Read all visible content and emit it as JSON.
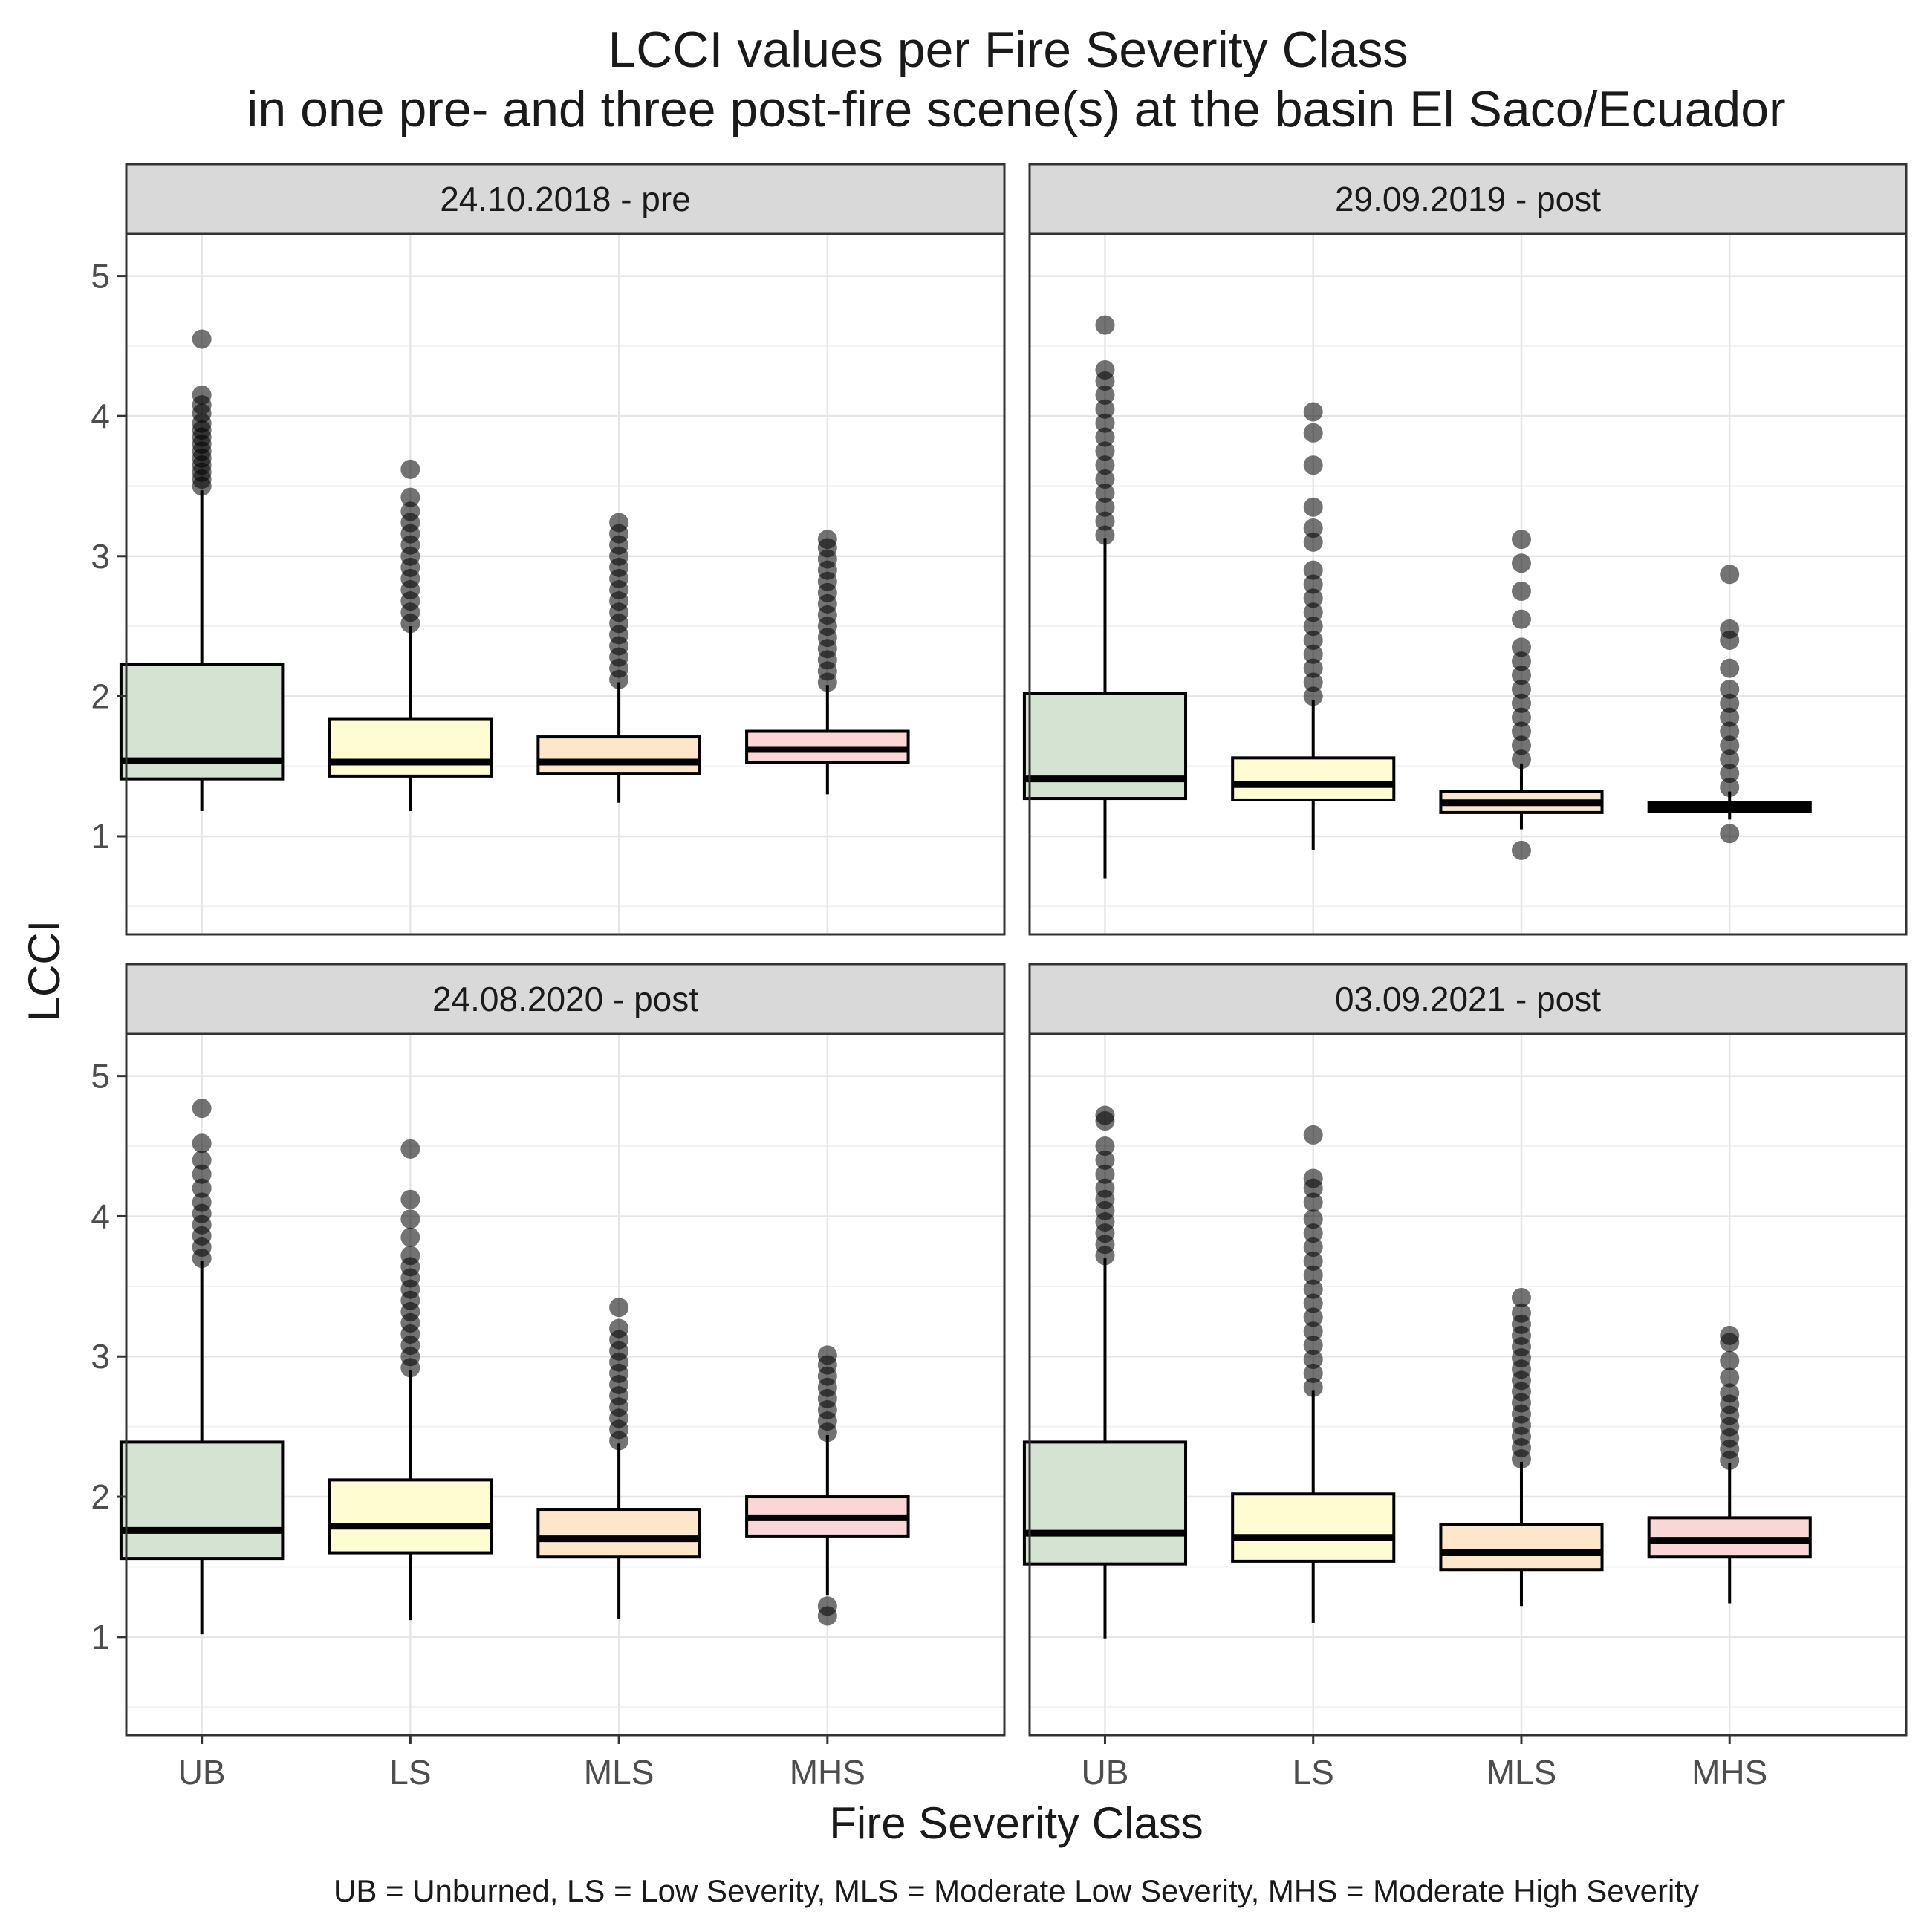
{
  "chart_data": {
    "type": "boxplot",
    "title": "LCCI values per Fire Severity Class",
    "subtitle": "in one pre- and three post-fire scene(s) at the basin El Saco/Ecuador",
    "xlabel": "Fire Severity Class",
    "ylabel": "LCCI",
    "caption": "UB = Unburned, LS = Low Severity, MLS = Moderate Low Severity, MHS = Moderate High Severity",
    "categories": [
      "UB",
      "LS",
      "MLS",
      "MHS"
    ],
    "ylim": [
      0.3,
      5.3
    ],
    "yticks": [
      1,
      2,
      3,
      4,
      5
    ],
    "colors": {
      "UB": "#d5e3d2",
      "LS": "#fefdd2",
      "MLS": "#fde6c9",
      "MHS": "#fbd6d6"
    },
    "panels": [
      {
        "label": "24.10.2018 - pre",
        "boxes": [
          {
            "category": "UB",
            "min": 1.18,
            "q1": 1.41,
            "median": 1.54,
            "q3": 2.23,
            "max": 3.47,
            "outliers": [
              3.5,
              3.55,
              3.6,
              3.65,
              3.7,
              3.75,
              3.8,
              3.85,
              3.9,
              3.95,
              4.02,
              4.08,
              4.15,
              4.55
            ]
          },
          {
            "category": "LS",
            "min": 1.18,
            "q1": 1.43,
            "median": 1.53,
            "q3": 1.84,
            "max": 2.5,
            "outliers": [
              2.52,
              2.6,
              2.68,
              2.76,
              2.84,
              2.92,
              3.0,
              3.08,
              3.16,
              3.24,
              3.32,
              3.42,
              3.62
            ]
          },
          {
            "category": "MLS",
            "min": 1.24,
            "q1": 1.45,
            "median": 1.53,
            "q3": 1.71,
            "max": 2.1,
            "outliers": [
              2.12,
              2.2,
              2.28,
              2.36,
              2.44,
              2.52,
              2.6,
              2.68,
              2.76,
              2.84,
              2.92,
              3.0,
              3.08,
              3.16,
              3.24
            ]
          },
          {
            "category": "MHS",
            "min": 1.3,
            "q1": 1.53,
            "median": 1.62,
            "q3": 1.75,
            "max": 2.08,
            "outliers": [
              2.1,
              2.18,
              2.26,
              2.34,
              2.42,
              2.5,
              2.58,
              2.66,
              2.74,
              2.82,
              2.9,
              2.98,
              3.06,
              3.12
            ]
          }
        ]
      },
      {
        "label": "29.09.2019 - post",
        "boxes": [
          {
            "category": "UB",
            "min": 0.7,
            "q1": 1.27,
            "median": 1.41,
            "q3": 2.02,
            "max": 3.13,
            "outliers": [
              3.15,
              3.25,
              3.35,
              3.45,
              3.55,
              3.65,
              3.75,
              3.85,
              3.95,
              4.05,
              4.15,
              4.25,
              4.33,
              4.65
            ]
          },
          {
            "category": "LS",
            "min": 0.9,
            "q1": 1.26,
            "median": 1.37,
            "q3": 1.56,
            "max": 1.97,
            "outliers": [
              2.0,
              2.1,
              2.2,
              2.3,
              2.4,
              2.5,
              2.6,
              2.7,
              2.8,
              2.9,
              3.1,
              3.2,
              3.35,
              3.65,
              3.88,
              4.03
            ]
          },
          {
            "category": "MLS",
            "min": 1.05,
            "q1": 1.17,
            "median": 1.24,
            "q3": 1.32,
            "max": 1.52,
            "outliers": [
              0.9,
              1.55,
              1.65,
              1.75,
              1.85,
              1.95,
              2.05,
              2.15,
              2.25,
              2.35,
              2.55,
              2.75,
              2.95,
              3.12
            ]
          },
          {
            "category": "MHS",
            "min": 1.12,
            "q1": 1.18,
            "median": 1.21,
            "q3": 1.24,
            "max": 1.32,
            "outliers": [
              1.02,
              1.35,
              1.45,
              1.55,
              1.65,
              1.75,
              1.85,
              1.95,
              2.05,
              2.2,
              2.4,
              2.48,
              2.87
            ]
          }
        ]
      },
      {
        "label": "24.08.2020 - post",
        "boxes": [
          {
            "category": "UB",
            "min": 1.02,
            "q1": 1.56,
            "median": 1.76,
            "q3": 2.39,
            "max": 3.68,
            "outliers": [
              3.7,
              3.78,
              3.86,
              3.94,
              4.02,
              4.1,
              4.2,
              4.3,
              4.4,
              4.52,
              4.77
            ]
          },
          {
            "category": "LS",
            "min": 1.12,
            "q1": 1.6,
            "median": 1.79,
            "q3": 2.12,
            "max": 2.9,
            "outliers": [
              2.92,
              3.0,
              3.08,
              3.16,
              3.24,
              3.32,
              3.4,
              3.48,
              3.56,
              3.64,
              3.72,
              3.85,
              3.98,
              4.12,
              4.48
            ]
          },
          {
            "category": "MLS",
            "min": 1.13,
            "q1": 1.57,
            "median": 1.7,
            "q3": 1.91,
            "max": 2.38,
            "outliers": [
              2.4,
              2.48,
              2.56,
              2.64,
              2.72,
              2.8,
              2.88,
              2.96,
              3.04,
              3.12,
              3.2,
              3.35
            ]
          },
          {
            "category": "MHS",
            "min": 1.3,
            "q1": 1.72,
            "median": 1.85,
            "q3": 2.0,
            "max": 2.44,
            "outliers": [
              1.15,
              1.22,
              2.46,
              2.54,
              2.62,
              2.7,
              2.78,
              2.86,
              2.94,
              3.01
            ]
          }
        ]
      },
      {
        "label": "03.09.2021 - post",
        "boxes": [
          {
            "category": "UB",
            "min": 0.99,
            "q1": 1.52,
            "median": 1.74,
            "q3": 2.39,
            "max": 3.7,
            "outliers": [
              3.72,
              3.8,
              3.88,
              3.96,
              4.04,
              4.12,
              4.2,
              4.3,
              4.4,
              4.5,
              4.68,
              4.72
            ]
          },
          {
            "category": "LS",
            "min": 1.1,
            "q1": 1.54,
            "median": 1.71,
            "q3": 2.02,
            "max": 2.76,
            "outliers": [
              2.78,
              2.88,
              2.98,
              3.08,
              3.18,
              3.28,
              3.38,
              3.48,
              3.58,
              3.68,
              3.78,
              3.88,
              3.98,
              4.1,
              4.2,
              4.27,
              4.58
            ]
          },
          {
            "category": "MLS",
            "min": 1.22,
            "q1": 1.48,
            "median": 1.6,
            "q3": 1.8,
            "max": 2.25,
            "outliers": [
              2.27,
              2.35,
              2.43,
              2.51,
              2.59,
              2.67,
              2.75,
              2.83,
              2.91,
              2.99,
              3.07,
              3.15,
              3.23,
              3.31,
              3.42
            ]
          },
          {
            "category": "MHS",
            "min": 1.24,
            "q1": 1.57,
            "median": 1.69,
            "q3": 1.85,
            "max": 2.24,
            "outliers": [
              2.26,
              2.34,
              2.42,
              2.5,
              2.58,
              2.66,
              2.74,
              2.85,
              2.97,
              3.1,
              3.15
            ]
          }
        ]
      }
    ]
  }
}
